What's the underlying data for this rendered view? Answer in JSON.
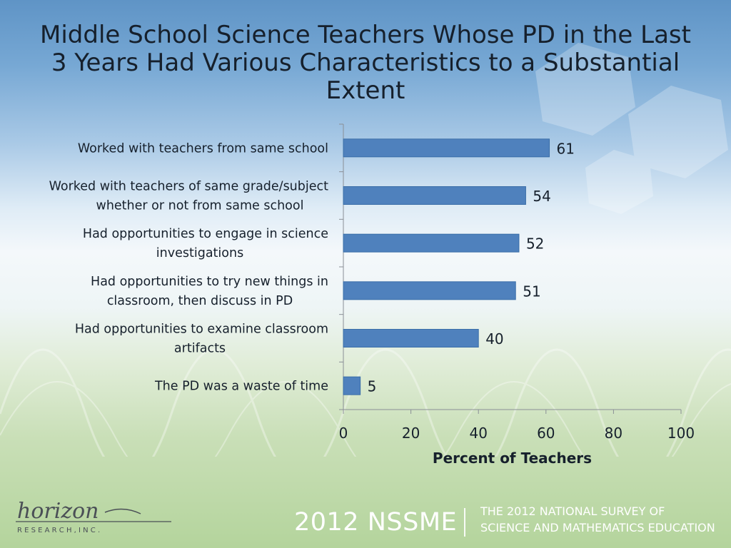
{
  "chart_data": {
    "type": "bar",
    "orientation": "horizontal",
    "title": "Middle School Science Teachers Whose PD in the Last 3 Years Had Various Characteristics to a Substantial Extent",
    "categories": [
      [
        "Worked with teachers from same school"
      ],
      [
        "Worked with teachers of same grade/subject",
        "whether or not from same school"
      ],
      [
        "Had opportunities to engage in science",
        "investigations"
      ],
      [
        "Had opportunities to try new things in",
        "classroom, then discuss in PD"
      ],
      [
        "Had opportunities to examine classroom",
        "artifacts"
      ],
      [
        "The PD was a waste of time"
      ]
    ],
    "values": [
      61,
      54,
      52,
      51,
      40,
      5
    ],
    "xlabel": "Percent of Teachers",
    "xlim": [
      0,
      100
    ],
    "xticks": [
      0,
      20,
      40,
      60,
      80,
      100
    ],
    "grid": false,
    "bar_color": "#4f81bd",
    "bar_edge_color": "#3a6ea8"
  },
  "footer": {
    "logo_text": "horizon",
    "logo_subtext": "R E S E A R C H ,  I N C .",
    "year_label": "2012 NSSME",
    "survey_line1": "THE 2012 NATIONAL SURVEY OF",
    "survey_line2": "SCIENCE AND MATHEMATICS EDUCATION"
  }
}
